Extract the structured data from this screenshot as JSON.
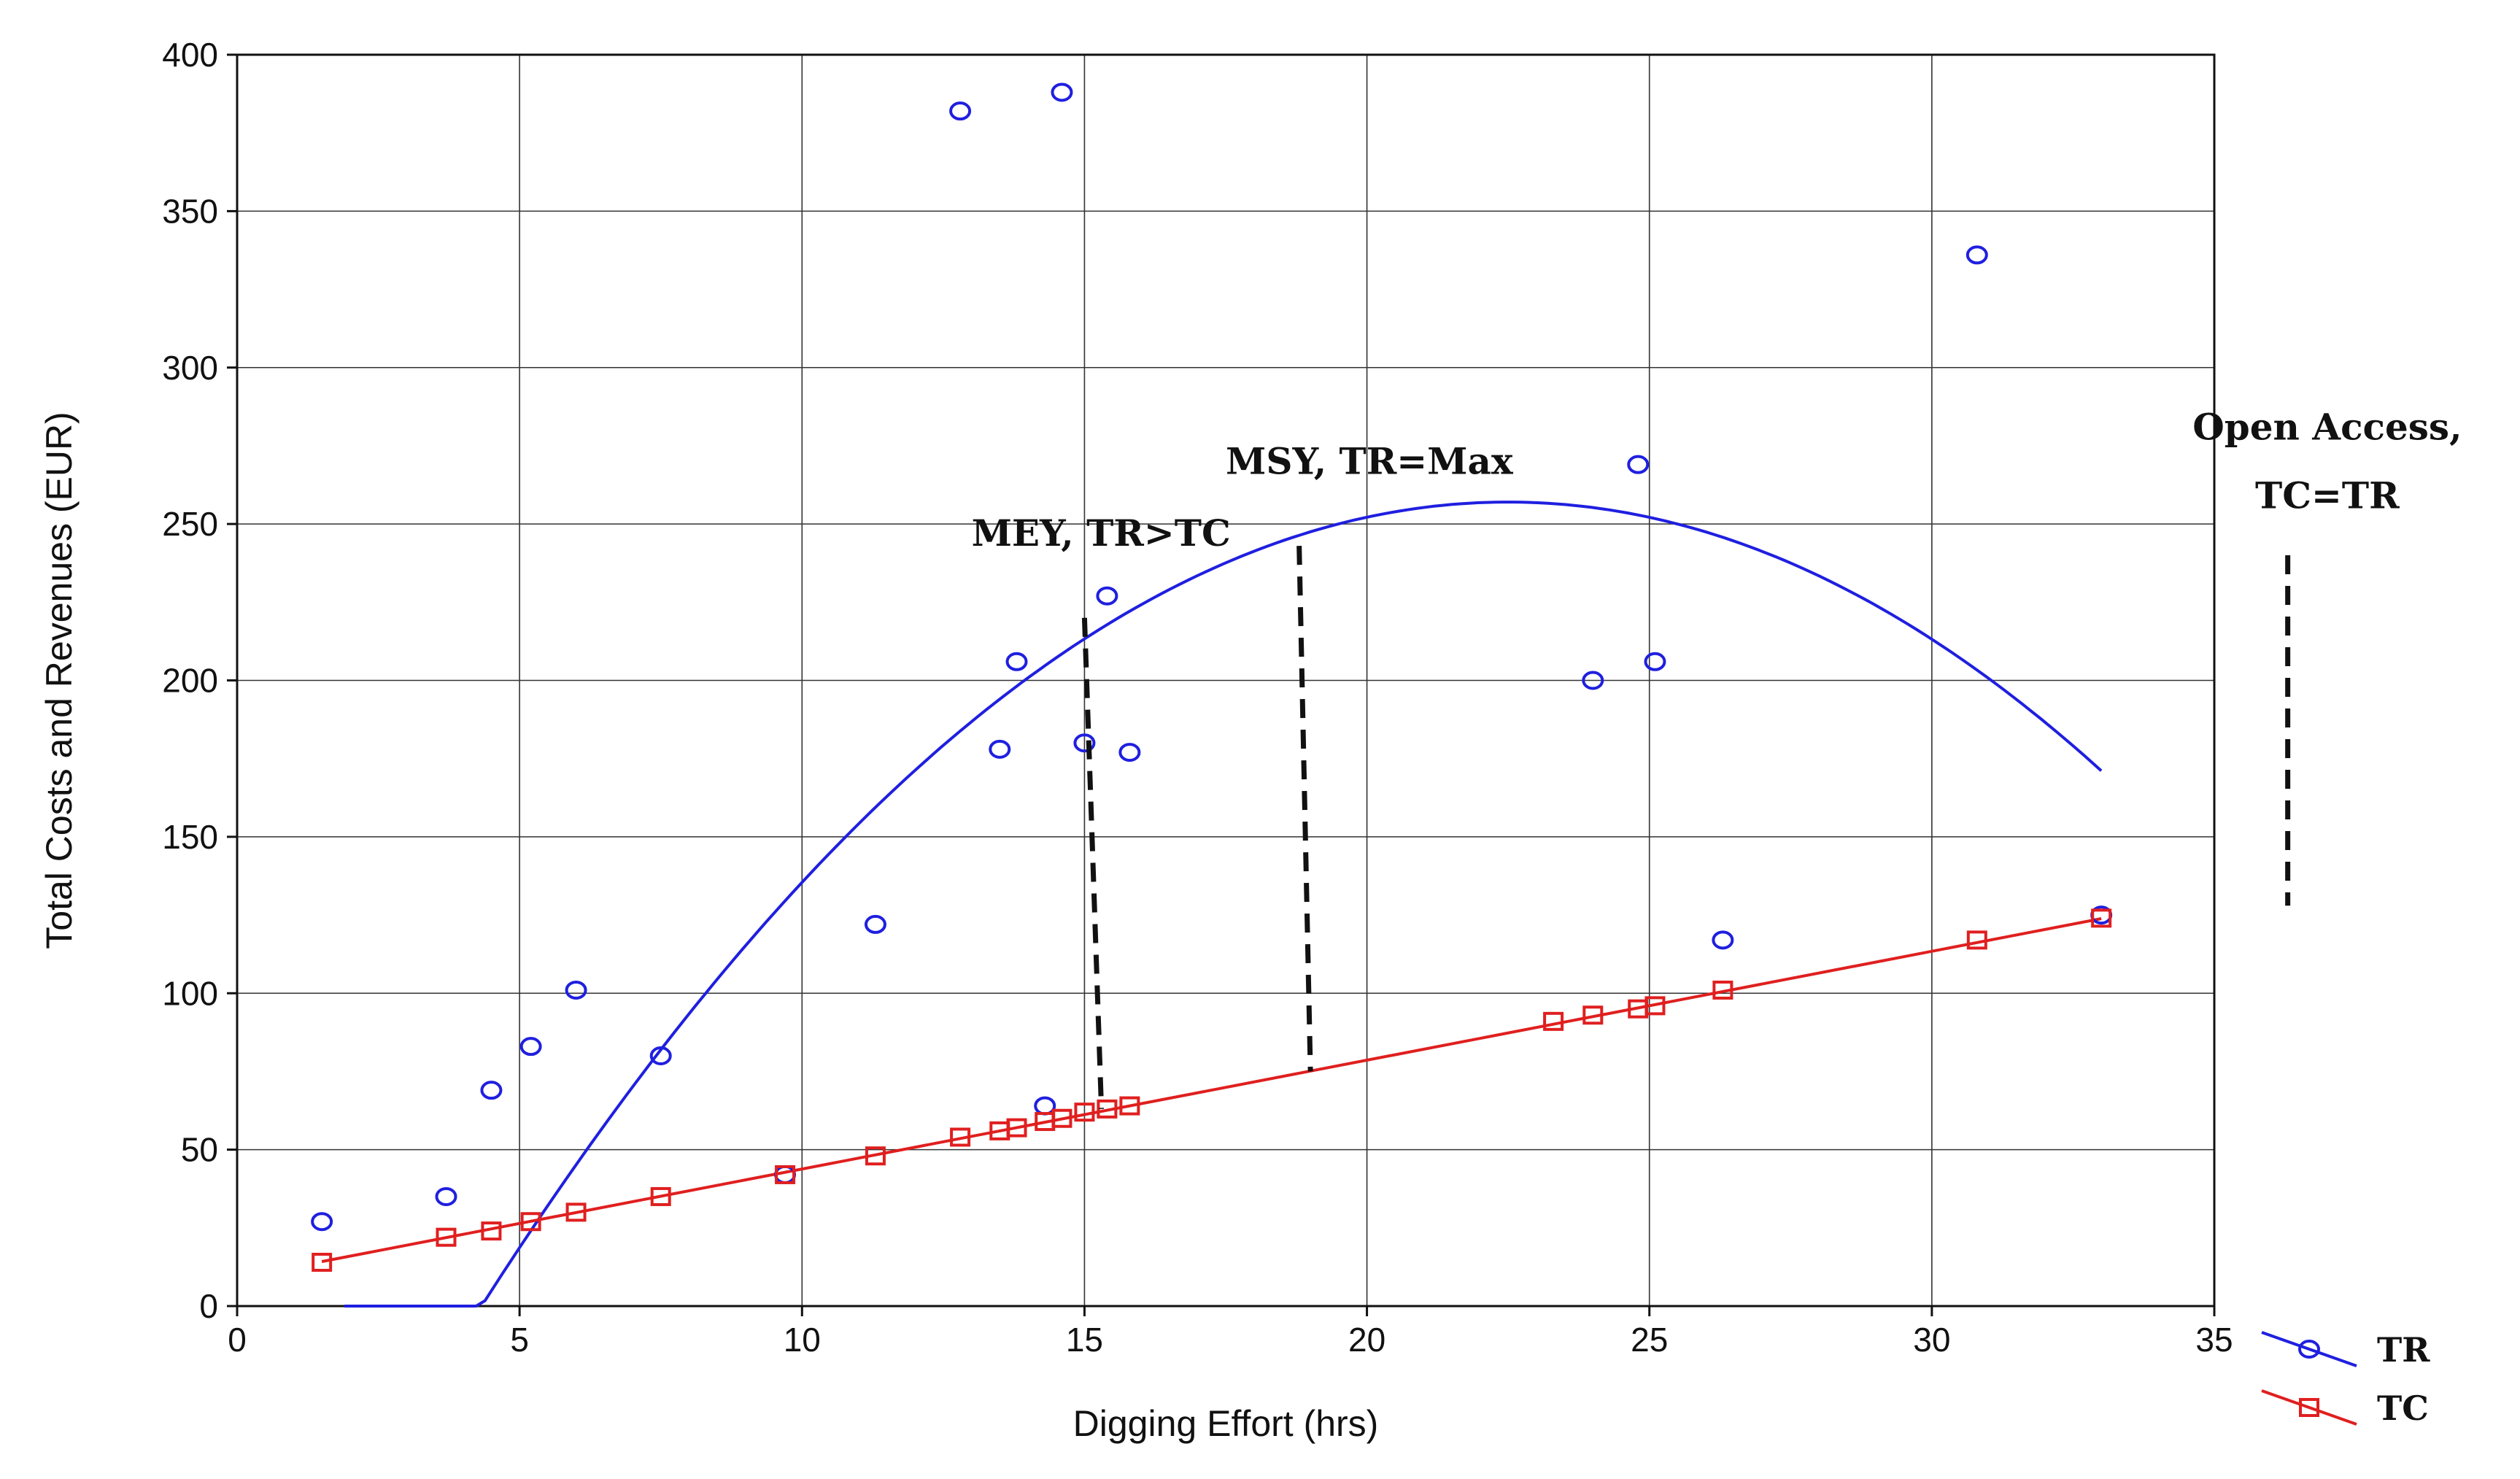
{
  "chart_data": {
    "type": "scatter",
    "title": "",
    "xlabel": "Digging Effort (hrs)",
    "ylabel": "Total Costs and Revenues (EUR)",
    "xlim": [
      0,
      35
    ],
    "ylim": [
      0,
      400
    ],
    "xticks": [
      0,
      5,
      10,
      15,
      20,
      25,
      30,
      35
    ],
    "yticks": [
      0,
      50,
      100,
      150,
      200,
      250,
      300,
      350,
      400
    ],
    "grid": true,
    "series": [
      {
        "name": "TR",
        "color": "#1f1fe0",
        "marker": "circle",
        "points": [
          [
            1.5,
            27
          ],
          [
            3.7,
            35
          ],
          [
            4.5,
            69
          ],
          [
            5.2,
            83
          ],
          [
            6.0,
            101
          ],
          [
            7.5,
            80
          ],
          [
            9.7,
            42
          ],
          [
            11.3,
            122
          ],
          [
            12.8,
            382
          ],
          [
            13.5,
            178
          ],
          [
            13.8,
            206
          ],
          [
            14.3,
            64
          ],
          [
            14.6,
            388
          ],
          [
            15.0,
            180
          ],
          [
            15.4,
            227
          ],
          [
            15.8,
            177
          ],
          [
            24.0,
            200
          ],
          [
            24.8,
            269
          ],
          [
            25.1,
            206
          ],
          [
            26.3,
            117
          ],
          [
            30.8,
            336
          ],
          [
            33.0,
            125
          ]
        ],
        "fit": {
          "type": "quadratic",
          "a": -0.7786,
          "b": 35.03,
          "c": -137.0,
          "x_range": [
            1.9,
            33.0
          ]
        }
      },
      {
        "name": "TC",
        "color": "#e01f1f",
        "marker": "square",
        "points": [
          [
            1.5,
            14
          ],
          [
            3.7,
            22
          ],
          [
            4.5,
            24
          ],
          [
            5.2,
            27
          ],
          [
            6.0,
            30
          ],
          [
            7.5,
            35
          ],
          [
            9.7,
            42
          ],
          [
            11.3,
            48
          ],
          [
            12.8,
            54
          ],
          [
            13.5,
            56
          ],
          [
            13.8,
            57
          ],
          [
            14.3,
            59
          ],
          [
            14.6,
            60
          ],
          [
            15.0,
            62
          ],
          [
            15.4,
            63
          ],
          [
            15.8,
            64
          ],
          [
            23.3,
            91
          ],
          [
            24.0,
            93
          ],
          [
            24.8,
            95
          ],
          [
            25.1,
            96
          ],
          [
            26.3,
            101
          ],
          [
            30.8,
            117
          ],
          [
            33.0,
            124
          ]
        ],
        "fit": {
          "type": "linear",
          "slope": 3.48,
          "intercept": 9.0,
          "x_range": [
            1.5,
            33.0
          ]
        }
      }
    ],
    "annotations": [
      {
        "text": "MEY, TR>TC",
        "x": 13.0,
        "y": 243
      },
      {
        "text": "MSY, TR=Max",
        "x": 17.5,
        "y": 266
      },
      {
        "text": "Open Access,",
        "x": 37.0,
        "y": 277
      },
      {
        "text": "TC=TR",
        "x": 37.0,
        "y": 255
      }
    ],
    "reference_lines": [
      {
        "label": "MEY",
        "x1": 15.0,
        "y1": 220,
        "x2": 15.3,
        "y2": 63
      },
      {
        "label": "MSY",
        "x1": 18.8,
        "y1": 243,
        "x2": 19.0,
        "y2": 75
      },
      {
        "label": "Open Access",
        "x1": 36.3,
        "y1": 240,
        "x2": 36.3,
        "y2": 128
      }
    ],
    "legend": {
      "position": "bottom-right",
      "entries": [
        "TR",
        "TC"
      ]
    }
  }
}
